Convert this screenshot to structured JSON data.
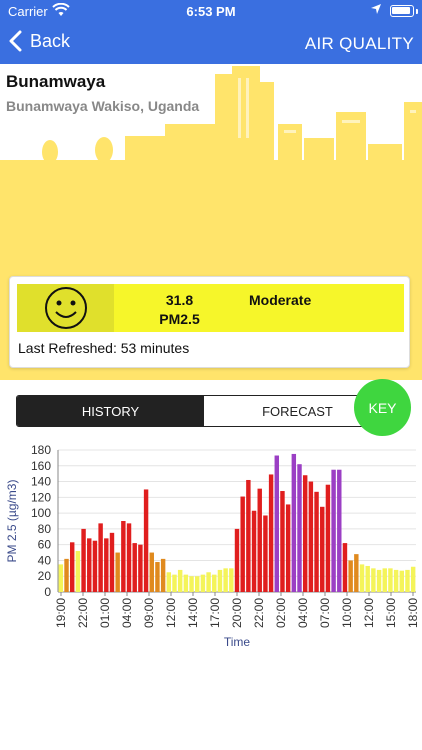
{
  "status_bar": {
    "carrier": "Carrier",
    "time": "6:53 PM"
  },
  "nav": {
    "back_label": "Back",
    "title": "AIR QUALITY"
  },
  "location": {
    "name": "Bunamwaya",
    "subtitle": "Bunamwaya Wakiso, Uganda"
  },
  "reading": {
    "value": "31.8",
    "pollutant": "PM2.5",
    "category": "Moderate",
    "last_refreshed": "Last Refreshed: 53 minutes"
  },
  "tabs": {
    "history": "HISTORY",
    "forecast": "FORECAST",
    "key": "KEY"
  },
  "colors": {
    "nav": "#3a6fe0",
    "moderate": "#f6f62a",
    "good_bar": "#f4f45a",
    "usg_bar": "#e08a1e",
    "unhealthy_bar": "#e01e1e",
    "very_unhealthy_bar": "#9b3fc4",
    "key": "#3fd63f"
  },
  "chart_data": {
    "type": "bar",
    "ylabel": "PM 2.5 (µg/m3)",
    "xlabel": "Time",
    "ylim": [
      0,
      180
    ],
    "yticks": [
      0,
      20,
      40,
      60,
      80,
      100,
      120,
      140,
      160,
      180
    ],
    "xtick_labels": [
      "19:00",
      "22:00",
      "01:00",
      "04:00",
      "09:00",
      "12:00",
      "14:00",
      "17:00",
      "20:00",
      "22:00",
      "02:00",
      "04:00",
      "07:00",
      "10:00",
      "12:00",
      "15:00",
      "18:00"
    ],
    "grid": true,
    "values": [
      35,
      42,
      63,
      52,
      80,
      68,
      65,
      87,
      68,
      75,
      50,
      90,
      87,
      62,
      60,
      130,
      50,
      38,
      42,
      25,
      22,
      28,
      22,
      20,
      20,
      22,
      25,
      22,
      28,
      30,
      30,
      80,
      121,
      142,
      103,
      131,
      97,
      149,
      173,
      128,
      111,
      175,
      162,
      148,
      140,
      127,
      108,
      136,
      155,
      155,
      62,
      40,
      48,
      35,
      33,
      30,
      28,
      30,
      30,
      28,
      27,
      28,
      32
    ],
    "bar_colors": [
      "good_bar",
      "usg_bar",
      "unhealthy_bar",
      "good_bar",
      "unhealthy_bar",
      "unhealthy_bar",
      "unhealthy_bar",
      "unhealthy_bar",
      "unhealthy_bar",
      "unhealthy_bar",
      "usg_bar",
      "unhealthy_bar",
      "unhealthy_bar",
      "unhealthy_bar",
      "unhealthy_bar",
      "unhealthy_bar",
      "usg_bar",
      "usg_bar",
      "usg_bar",
      "good_bar",
      "good_bar",
      "good_bar",
      "good_bar",
      "good_bar",
      "good_bar",
      "good_bar",
      "good_bar",
      "good_bar",
      "good_bar",
      "good_bar",
      "good_bar",
      "unhealthy_bar",
      "unhealthy_bar",
      "unhealthy_bar",
      "unhealthy_bar",
      "unhealthy_bar",
      "unhealthy_bar",
      "unhealthy_bar",
      "very_unhealthy_bar",
      "unhealthy_bar",
      "unhealthy_bar",
      "very_unhealthy_bar",
      "very_unhealthy_bar",
      "unhealthy_bar",
      "unhealthy_bar",
      "unhealthy_bar",
      "unhealthy_bar",
      "unhealthy_bar",
      "very_unhealthy_bar",
      "very_unhealthy_bar",
      "unhealthy_bar",
      "usg_bar",
      "usg_bar",
      "good_bar",
      "good_bar",
      "good_bar",
      "good_bar",
      "good_bar",
      "good_bar",
      "good_bar",
      "good_bar",
      "good_bar",
      "good_bar"
    ]
  }
}
